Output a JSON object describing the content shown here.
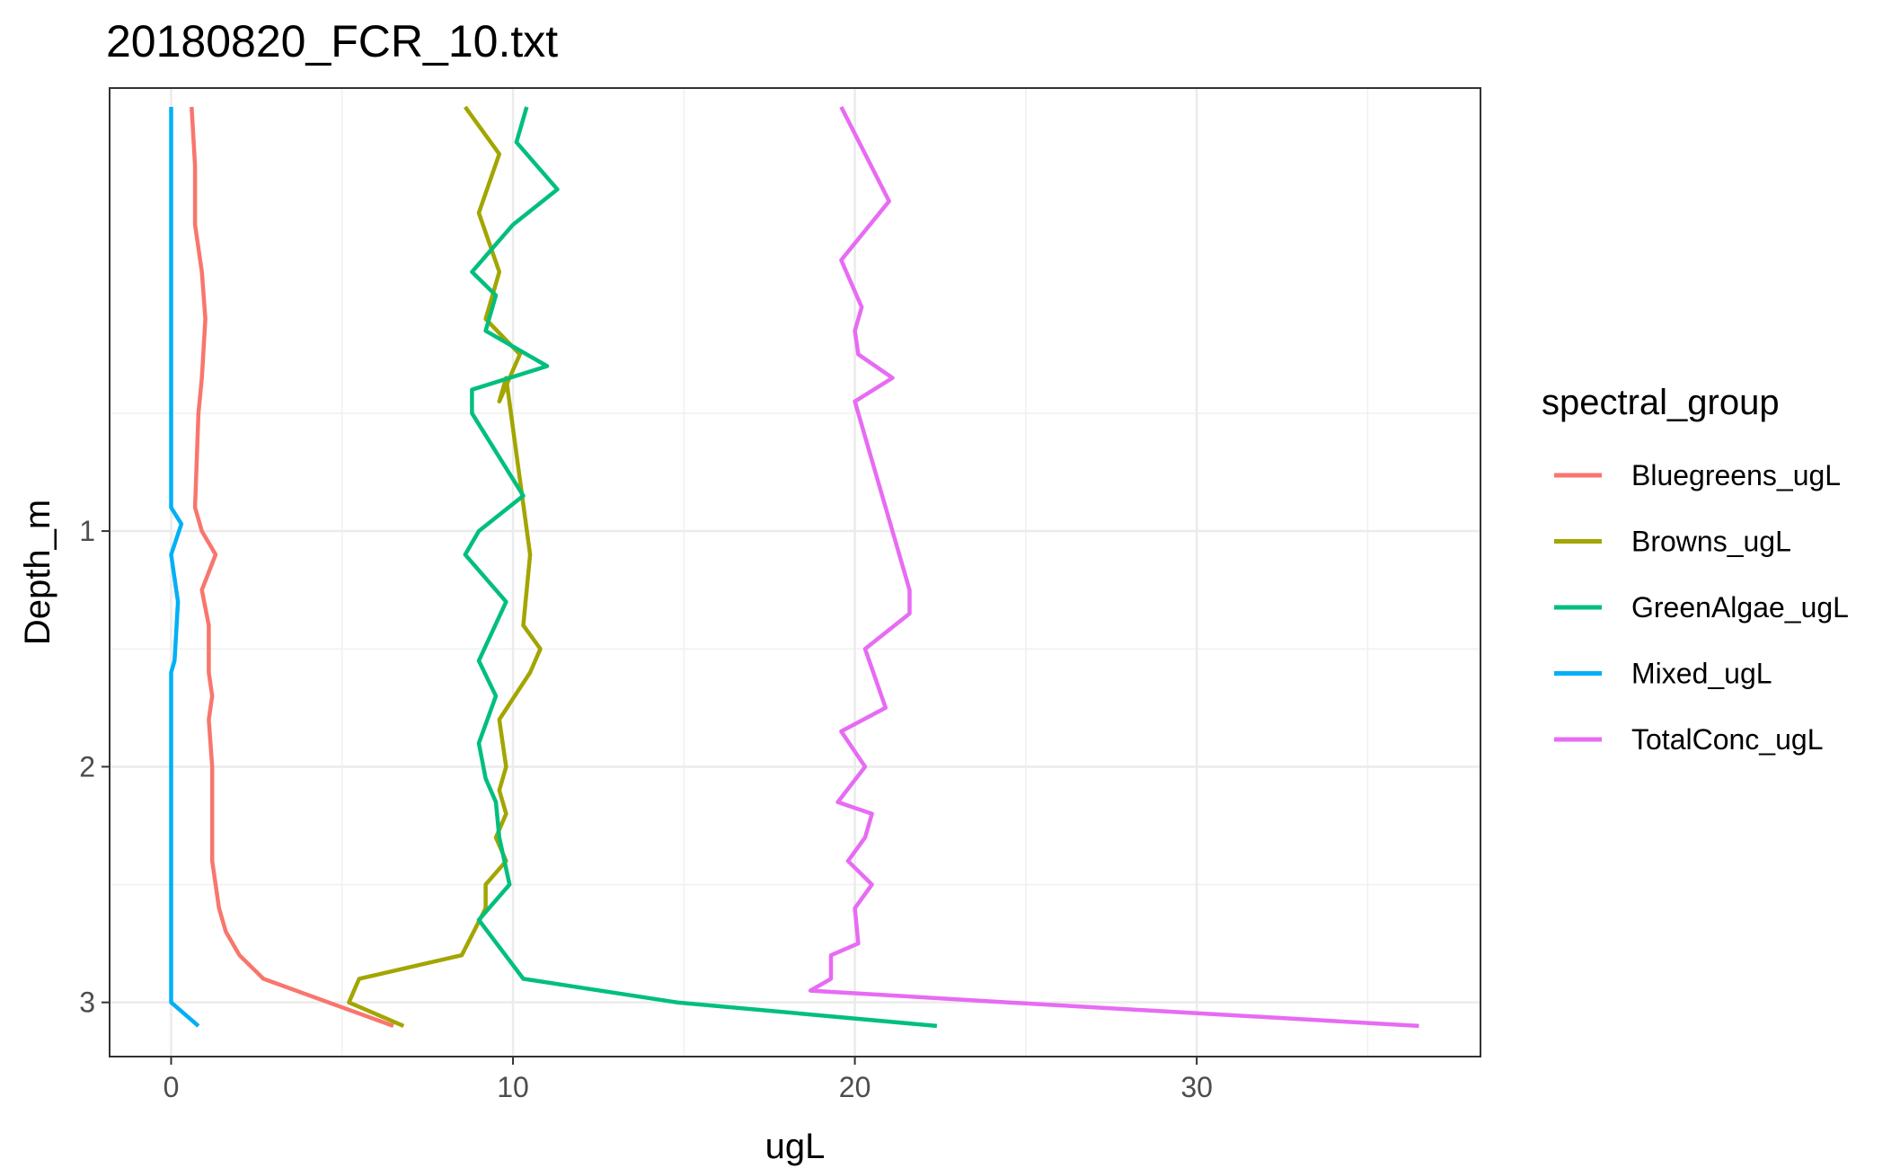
{
  "chart_data": {
    "type": "line",
    "title": "20180820_FCR_10.txt",
    "xlabel": "ugL",
    "ylabel": "Depth_m",
    "xlim": [
      -1.8,
      38.3
    ],
    "ylim": [
      3.23,
      -0.88
    ],
    "y_reversed": true,
    "x_ticks": [
      0,
      10,
      20,
      30
    ],
    "y_ticks": [
      1,
      2,
      3
    ],
    "grid": true,
    "legend_title": "spectral_group",
    "legend_position": "right",
    "series": [
      {
        "name": "Bluegreens_ugL",
        "color": "#F8766D",
        "points": [
          [
            0.6,
            -0.8
          ],
          [
            0.7,
            -0.55
          ],
          [
            0.7,
            -0.3
          ],
          [
            0.9,
            -0.1
          ],
          [
            1.0,
            0.1
          ],
          [
            0.9,
            0.35
          ],
          [
            0.8,
            0.5
          ],
          [
            0.7,
            0.9
          ],
          [
            0.9,
            1.0
          ],
          [
            1.3,
            1.1
          ],
          [
            0.9,
            1.25
          ],
          [
            1.1,
            1.4
          ],
          [
            1.1,
            1.6
          ],
          [
            1.2,
            1.7
          ],
          [
            1.1,
            1.8
          ],
          [
            1.2,
            2.0
          ],
          [
            1.2,
            2.2
          ],
          [
            1.2,
            2.4
          ],
          [
            1.3,
            2.5
          ],
          [
            1.4,
            2.6
          ],
          [
            1.6,
            2.7
          ],
          [
            2.0,
            2.8
          ],
          [
            2.7,
            2.9
          ],
          [
            6.5,
            3.1
          ]
        ]
      },
      {
        "name": "Browns_ugL",
        "color": "#A3A500",
        "points": [
          [
            8.6,
            -0.8
          ],
          [
            9.6,
            -0.6
          ],
          [
            9.0,
            -0.35
          ],
          [
            9.6,
            -0.1
          ],
          [
            9.2,
            0.1
          ],
          [
            10.2,
            0.25
          ],
          [
            9.6,
            0.45
          ],
          [
            9.8,
            0.35
          ],
          [
            10.5,
            1.1
          ],
          [
            10.3,
            1.4
          ],
          [
            10.8,
            1.5
          ],
          [
            10.5,
            1.6
          ],
          [
            9.6,
            1.8
          ],
          [
            9.8,
            2.0
          ],
          [
            9.6,
            2.1
          ],
          [
            9.8,
            2.2
          ],
          [
            9.5,
            2.3
          ],
          [
            9.8,
            2.4
          ],
          [
            9.2,
            2.5
          ],
          [
            9.2,
            2.6
          ],
          [
            8.5,
            2.8
          ],
          [
            5.5,
            2.9
          ],
          [
            5.2,
            3.0
          ],
          [
            6.8,
            3.1
          ]
        ]
      },
      {
        "name": "GreenAlgae_ugL",
        "color": "#00BF7D",
        "points": [
          [
            10.4,
            -0.8
          ],
          [
            10.1,
            -0.65
          ],
          [
            11.3,
            -0.45
          ],
          [
            10.0,
            -0.3
          ],
          [
            8.8,
            -0.1
          ],
          [
            9.5,
            0.0
          ],
          [
            9.2,
            0.15
          ],
          [
            11.0,
            0.3
          ],
          [
            8.8,
            0.4
          ],
          [
            8.8,
            0.5
          ],
          [
            10.3,
            0.85
          ],
          [
            9.0,
            1.0
          ],
          [
            8.6,
            1.1
          ],
          [
            9.8,
            1.3
          ],
          [
            9.0,
            1.55
          ],
          [
            9.5,
            1.7
          ],
          [
            9.0,
            1.9
          ],
          [
            9.2,
            2.05
          ],
          [
            9.5,
            2.15
          ],
          [
            9.6,
            2.3
          ],
          [
            9.9,
            2.5
          ],
          [
            9.0,
            2.65
          ],
          [
            10.3,
            2.9
          ],
          [
            14.8,
            3.0
          ],
          [
            22.4,
            3.1
          ]
        ]
      },
      {
        "name": "Mixed_ugL",
        "color": "#00B0F6",
        "points": [
          [
            0.0,
            -0.8
          ],
          [
            0.0,
            0.9
          ],
          [
            0.3,
            0.97
          ],
          [
            0.0,
            1.1
          ],
          [
            0.2,
            1.3
          ],
          [
            0.1,
            1.55
          ],
          [
            0.0,
            1.6
          ],
          [
            0.0,
            3.0
          ],
          [
            0.8,
            3.1
          ]
        ]
      },
      {
        "name": "TotalConc_ugL",
        "color": "#E76BF3",
        "points": [
          [
            19.6,
            -0.8
          ],
          [
            20.3,
            -0.6
          ],
          [
            21.0,
            -0.4
          ],
          [
            19.6,
            -0.15
          ],
          [
            20.2,
            0.05
          ],
          [
            20.0,
            0.15
          ],
          [
            20.1,
            0.25
          ],
          [
            21.1,
            0.35
          ],
          [
            20.0,
            0.45
          ],
          [
            20.5,
            0.7
          ],
          [
            21.6,
            1.25
          ],
          [
            21.6,
            1.35
          ],
          [
            20.3,
            1.5
          ],
          [
            20.9,
            1.75
          ],
          [
            19.6,
            1.85
          ],
          [
            20.3,
            2.0
          ],
          [
            19.5,
            2.15
          ],
          [
            20.5,
            2.2
          ],
          [
            20.3,
            2.3
          ],
          [
            19.8,
            2.4
          ],
          [
            20.5,
            2.5
          ],
          [
            20.0,
            2.6
          ],
          [
            20.1,
            2.75
          ],
          [
            19.3,
            2.8
          ],
          [
            19.3,
            2.9
          ],
          [
            18.7,
            2.95
          ],
          [
            24.5,
            3.0
          ],
          [
            36.5,
            3.1
          ]
        ]
      }
    ]
  }
}
